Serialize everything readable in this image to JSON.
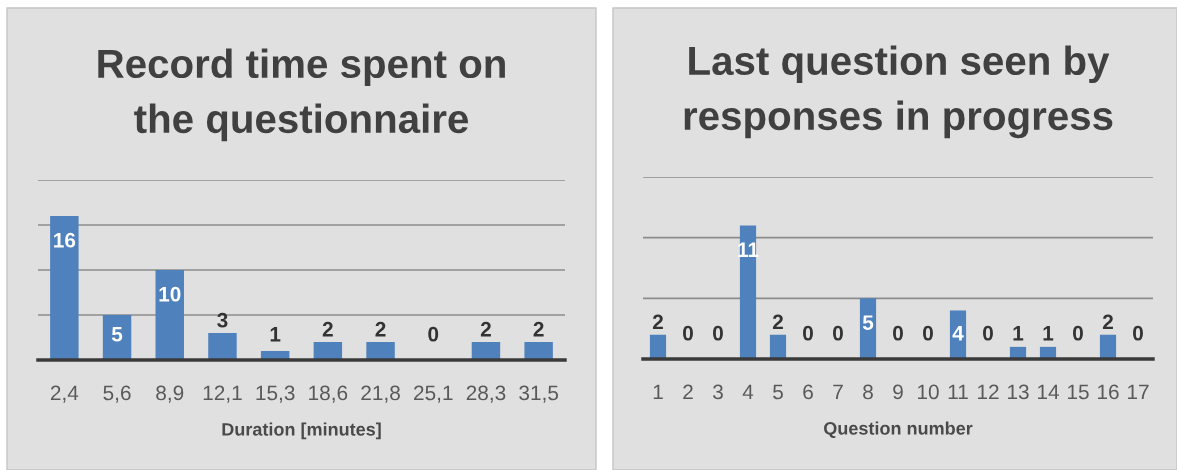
{
  "chart_data": [
    {
      "type": "bar",
      "title": "Record time spent on\nthe questionnaire",
      "xlabel": "Duration [minutes]",
      "categories": [
        "2,4",
        "5,6",
        "8,9",
        "12,1",
        "15,3",
        "18,6",
        "21,8",
        "25,1",
        "28,3",
        "31,5"
      ],
      "values": [
        16,
        5,
        10,
        3,
        1,
        2,
        2,
        0,
        2,
        2
      ],
      "color": "#4f81bd",
      "ylim": [
        0,
        20
      ],
      "yticks": [
        {
          "value": 0,
          "label": null
        },
        {
          "value": 5,
          "label": null
        },
        {
          "value": 10,
          "label": null
        },
        {
          "value": 15,
          "label": null
        },
        {
          "value": 20,
          "label": null
        }
      ],
      "grid": "y",
      "data_labels": true,
      "tick_labels": "x"
    },
    {
      "type": "bar",
      "title": "Last question seen by\nresponses in progress",
      "xlabel": "Question number",
      "categories": [
        "1",
        "2",
        "3",
        "4",
        "5",
        "6",
        "7",
        "8",
        "9",
        "10",
        "11",
        "12",
        "13",
        "14",
        "15",
        "16",
        "17"
      ],
      "values": [
        2,
        0,
        0,
        11,
        2,
        0,
        0,
        5,
        0,
        0,
        4,
        0,
        1,
        1,
        0,
        2,
        0
      ],
      "color": "#4f81bd",
      "ylim": [
        0,
        15
      ],
      "yticks": [
        {
          "value": 0,
          "label": null
        },
        {
          "value": 5,
          "label": null
        },
        {
          "value": 10,
          "label": null
        },
        {
          "value": 15,
          "label": null
        }
      ],
      "grid": "y",
      "data_labels": true,
      "tick_labels": "x"
    }
  ]
}
